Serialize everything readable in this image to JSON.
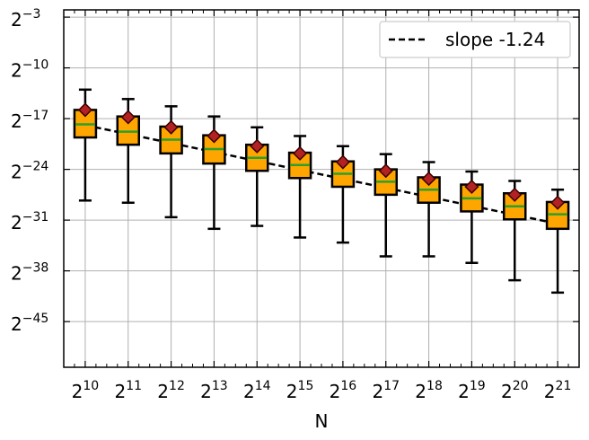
{
  "chart_data": {
    "type": "box",
    "title": "",
    "xlabel": "N",
    "ylabel": "",
    "x_scale": "log2",
    "y_scale": "log2",
    "x_ticks": [
      {
        "base": "2",
        "exp": "10"
      },
      {
        "base": "2",
        "exp": "11"
      },
      {
        "base": "2",
        "exp": "12"
      },
      {
        "base": "2",
        "exp": "13"
      },
      {
        "base": "2",
        "exp": "14"
      },
      {
        "base": "2",
        "exp": "15"
      },
      {
        "base": "2",
        "exp": "16"
      },
      {
        "base": "2",
        "exp": "17"
      },
      {
        "base": "2",
        "exp": "18"
      },
      {
        "base": "2",
        "exp": "19"
      },
      {
        "base": "2",
        "exp": "20"
      },
      {
        "base": "2",
        "exp": "21"
      }
    ],
    "y_ticks": [
      {
        "base": "2",
        "exp": "−3"
      },
      {
        "base": "2",
        "exp": "−10"
      },
      {
        "base": "2",
        "exp": "−17"
      },
      {
        "base": "2",
        "exp": "−24"
      },
      {
        "base": "2",
        "exp": "−31"
      },
      {
        "base": "2",
        "exp": "−38"
      },
      {
        "base": "2",
        "exp": "−45"
      }
    ],
    "y_tick_exponents": [
      -3,
      -10,
      -17,
      -24,
      -31,
      -38,
      -45
    ],
    "ylim_log2": [
      -51.3,
      -2.0
    ],
    "x_exponents": [
      10,
      11,
      12,
      13,
      14,
      15,
      16,
      17,
      18,
      19,
      20,
      21
    ],
    "boxes_log2": [
      {
        "whisker_low": -28.3,
        "q1": -19.6,
        "median": -17.8,
        "q3": -15.8,
        "whisker_high": -13.0,
        "mean": -15.8
      },
      {
        "whisker_low": -28.6,
        "q1": -20.6,
        "median": -18.8,
        "q3": -16.7,
        "whisker_high": -14.3,
        "mean": -16.8
      },
      {
        "whisker_low": -30.6,
        "q1": -21.8,
        "median": -19.9,
        "q3": -18.1,
        "whisker_high": -15.3,
        "mean": -18.2
      },
      {
        "whisker_low": -32.2,
        "q1": -23.2,
        "median": -21.2,
        "q3": -19.3,
        "whisker_high": -16.7,
        "mean": -19.4
      },
      {
        "whisker_low": -31.8,
        "q1": -24.2,
        "median": -22.4,
        "q3": -20.6,
        "whisker_high": -18.2,
        "mean": -20.8
      },
      {
        "whisker_low": -33.4,
        "q1": -25.2,
        "median": -23.4,
        "q3": -21.7,
        "whisker_high": -19.4,
        "mean": -21.8
      },
      {
        "whisker_low": -34.1,
        "q1": -26.4,
        "median": -24.6,
        "q3": -22.9,
        "whisker_high": -20.8,
        "mean": -23.0
      },
      {
        "whisker_low": -36.0,
        "q1": -27.5,
        "median": -25.7,
        "q3": -24.0,
        "whisker_high": -21.9,
        "mean": -24.2
      },
      {
        "whisker_low": -36.0,
        "q1": -28.6,
        "median": -26.8,
        "q3": -25.1,
        "whisker_high": -23.0,
        "mean": -25.3
      },
      {
        "whisker_low": -36.9,
        "q1": -29.8,
        "median": -28.0,
        "q3": -26.1,
        "whisker_high": -24.3,
        "mean": -26.4
      },
      {
        "whisker_low": -39.3,
        "q1": -30.9,
        "median": -29.1,
        "q3": -27.3,
        "whisker_high": -25.6,
        "mean": -27.5
      },
      {
        "whisker_low": -41.0,
        "q1": -32.2,
        "median": -30.2,
        "q3": -28.5,
        "whisker_high": -26.8,
        "mean": -28.6
      }
    ],
    "fit_line": {
      "name": "slope -1.24",
      "slope": -1.24,
      "x_exp": [
        10,
        21
      ],
      "y_log2": [
        -17.9,
        -31.5
      ]
    },
    "legend": {
      "position": "top-right",
      "entries": [
        "slope -1.24"
      ]
    },
    "grid": true,
    "colors": {
      "box_fill": "#ffa500",
      "median": "#2ca02c",
      "mean_marker": "#b22222",
      "edge": "#000000",
      "grid": "#b0b0b0"
    }
  }
}
